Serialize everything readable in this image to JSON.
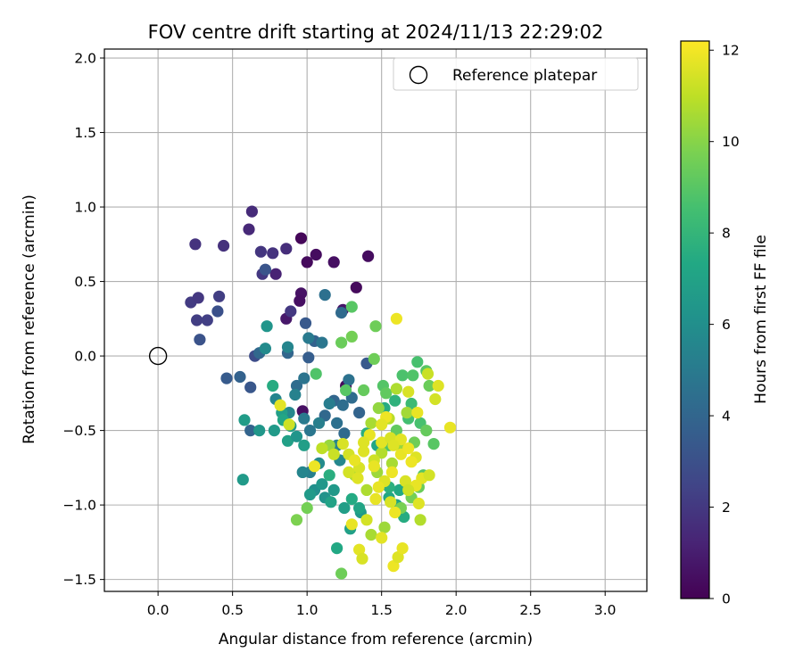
{
  "chart_data": {
    "type": "scatter",
    "title": "FOV centre drift starting at 2024/11/13 22:29:02",
    "xlabel": "Angular distance from reference (arcmin)",
    "ylabel": "Rotation from reference (arcmin)",
    "xlim": [
      -0.36,
      3.28
    ],
    "ylim": [
      -1.58,
      2.06
    ],
    "xticks": [
      0.0,
      0.5,
      1.0,
      1.5,
      2.0,
      2.5,
      3.0
    ],
    "xtick_labels": [
      "0.0",
      "0.5",
      "1.0",
      "1.5",
      "2.0",
      "2.5",
      "3.0"
    ],
    "yticks": [
      -1.5,
      -1.0,
      -0.5,
      0.0,
      0.5,
      1.0,
      1.5,
      2.0
    ],
    "ytick_labels": [
      "−1.5",
      "−1.0",
      "−0.5",
      "0.0",
      "0.5",
      "1.0",
      "1.5",
      "2.0"
    ],
    "grid": true,
    "legend": {
      "position": "upper-right",
      "entries": [
        "Reference platepar"
      ]
    },
    "reference_point": {
      "x": 0.0,
      "y": 0.0,
      "marker": "open-circle",
      "label": "Reference platepar"
    },
    "colorbar": {
      "label": "Hours from first FF file",
      "range": [
        0,
        12.2
      ],
      "ticks": [
        0,
        2,
        4,
        6,
        8,
        10,
        12
      ],
      "tick_labels": [
        "0",
        "2",
        "4",
        "6",
        "8",
        "10",
        "12"
      ],
      "colormap": "viridis"
    },
    "point_fields": [
      "x",
      "y",
      "hours"
    ],
    "points": [
      [
        0.96,
        0.79,
        0.2
      ],
      [
        1.06,
        0.68,
        0.4
      ],
      [
        1.0,
        0.63,
        0.3
      ],
      [
        1.18,
        0.63,
        0.5
      ],
      [
        1.41,
        0.67,
        0.4
      ],
      [
        1.33,
        0.46,
        0.3
      ],
      [
        0.96,
        0.42,
        0.6
      ],
      [
        0.95,
        0.37,
        0.5
      ],
      [
        0.86,
        0.25,
        0.8
      ],
      [
        1.24,
        0.31,
        0.7
      ],
      [
        1.26,
        -0.2,
        0.3
      ],
      [
        0.97,
        -0.37,
        0.5
      ],
      [
        0.63,
        0.97,
        1.5
      ],
      [
        0.61,
        0.85,
        1.4
      ],
      [
        0.25,
        0.75,
        1.8
      ],
      [
        0.44,
        0.74,
        1.7
      ],
      [
        0.69,
        0.7,
        1.9
      ],
      [
        0.86,
        0.72,
        1.6
      ],
      [
        0.77,
        0.69,
        1.8
      ],
      [
        0.7,
        0.55,
        2.0
      ],
      [
        0.79,
        0.55,
        1.2
      ],
      [
        0.22,
        0.36,
        2.1
      ],
      [
        0.27,
        0.39,
        2.0
      ],
      [
        0.41,
        0.4,
        2.2
      ],
      [
        0.89,
        0.3,
        2.0
      ],
      [
        0.26,
        0.24,
        2.2
      ],
      [
        0.33,
        0.24,
        2.3
      ],
      [
        0.4,
        0.3,
        3.0
      ],
      [
        0.28,
        0.11,
        3.1
      ],
      [
        0.65,
        0.0,
        2.8
      ],
      [
        0.72,
        0.58,
        3.2
      ],
      [
        0.99,
        0.22,
        3.4
      ],
      [
        1.12,
        0.41,
        4.5
      ],
      [
        1.23,
        0.29,
        4.2
      ],
      [
        1.05,
        0.1,
        3.8
      ],
      [
        0.87,
        0.02,
        4.0
      ],
      [
        1.01,
        -0.01,
        3.6
      ],
      [
        1.4,
        -0.05,
        3.4
      ],
      [
        0.46,
        -0.15,
        3.5
      ],
      [
        0.55,
        -0.14,
        3.8
      ],
      [
        0.62,
        -0.21,
        3.3
      ],
      [
        0.62,
        -0.5,
        3.9
      ],
      [
        0.68,
        0.02,
        4.1
      ],
      [
        0.93,
        -0.2,
        4.3
      ],
      [
        0.98,
        -0.15,
        4.7
      ],
      [
        1.01,
        0.12,
        5.0
      ],
      [
        1.1,
        0.09,
        4.8
      ],
      [
        1.18,
        -0.3,
        4.0
      ],
      [
        1.24,
        -0.33,
        4.4
      ],
      [
        1.28,
        -0.16,
        4.6
      ],
      [
        1.3,
        -0.28,
        4.3
      ],
      [
        1.35,
        -0.38,
        3.9
      ],
      [
        1.12,
        -0.4,
        4.1
      ],
      [
        1.2,
        -0.45,
        4.5
      ],
      [
        1.25,
        -0.52,
        4.2
      ],
      [
        1.02,
        -0.5,
        4.8
      ],
      [
        1.08,
        -0.45,
        5.2
      ],
      [
        0.98,
        -0.42,
        5.0
      ],
      [
        0.73,
        0.2,
        6.3
      ],
      [
        0.72,
        0.05,
        5.8
      ],
      [
        0.87,
        0.06,
        5.5
      ],
      [
        0.79,
        -0.29,
        5.5
      ],
      [
        0.88,
        -0.38,
        5.6
      ],
      [
        0.92,
        -0.26,
        5.3
      ],
      [
        1.15,
        -0.32,
        5.1
      ],
      [
        1.2,
        -0.6,
        5.4
      ],
      [
        1.22,
        -0.7,
        5.6
      ],
      [
        1.08,
        -0.72,
        5.8
      ],
      [
        1.02,
        -0.78,
        5.2
      ],
      [
        0.97,
        -0.78,
        5.5
      ],
      [
        1.05,
        -0.9,
        6.0
      ],
      [
        1.12,
        -0.95,
        6.2
      ],
      [
        1.18,
        -0.9,
        6.5
      ],
      [
        0.58,
        -0.43,
        6.7
      ],
      [
        0.57,
        -0.83,
        6.6
      ],
      [
        0.68,
        -0.5,
        6.4
      ],
      [
        0.78,
        -0.5,
        6.6
      ],
      [
        0.83,
        -0.38,
        6.8
      ],
      [
        0.89,
        -0.47,
        6.5
      ],
      [
        0.87,
        -0.57,
        6.9
      ],
      [
        0.93,
        -0.54,
        6.3
      ],
      [
        0.98,
        -0.6,
        6.8
      ],
      [
        1.02,
        -0.93,
        6.6
      ],
      [
        1.1,
        -0.86,
        6.4
      ],
      [
        1.16,
        -0.98,
        7.0
      ],
      [
        1.25,
        -1.02,
        6.8
      ],
      [
        1.29,
        -1.16,
        6.9
      ],
      [
        1.36,
        -1.05,
        6.5
      ],
      [
        0.77,
        -0.2,
        7.5
      ],
      [
        0.84,
        -0.43,
        7.2
      ],
      [
        1.15,
        -0.8,
        7.6
      ],
      [
        1.2,
        -1.29,
        7.3
      ],
      [
        1.35,
        -1.02,
        7.1
      ],
      [
        1.3,
        -0.96,
        7.4
      ],
      [
        1.55,
        -0.95,
        7.2
      ],
      [
        1.6,
        -1.0,
        7.0
      ],
      [
        1.65,
        -1.08,
        7.5
      ],
      [
        1.62,
        -0.9,
        7.3
      ],
      [
        1.55,
        -0.88,
        7.7
      ],
      [
        1.47,
        -0.6,
        7.2
      ],
      [
        1.4,
        -0.52,
        7.6
      ],
      [
        1.52,
        -0.35,
        7.5
      ],
      [
        1.59,
        -0.3,
        7.8
      ],
      [
        1.06,
        -0.12,
        8.8
      ],
      [
        1.3,
        0.33,
        9.0
      ],
      [
        1.46,
        0.2,
        9.5
      ],
      [
        1.3,
        0.13,
        9.6
      ],
      [
        1.23,
        0.09,
        9.4
      ],
      [
        1.26,
        -0.23,
        9.0
      ],
      [
        1.38,
        -0.23,
        9.3
      ],
      [
        1.45,
        -0.02,
        9.5
      ],
      [
        1.51,
        -0.2,
        8.9
      ],
      [
        1.53,
        -0.25,
        9.2
      ],
      [
        1.64,
        -0.13,
        8.7
      ],
      [
        1.74,
        -0.04,
        8.6
      ],
      [
        1.71,
        -0.13,
        8.8
      ],
      [
        1.8,
        -0.1,
        9.0
      ],
      [
        1.82,
        -0.2,
        9.4
      ],
      [
        1.7,
        -0.32,
        8.3
      ],
      [
        1.68,
        -0.42,
        8.5
      ],
      [
        1.76,
        -0.45,
        8.6
      ],
      [
        1.6,
        -0.5,
        9.2
      ],
      [
        1.55,
        -0.6,
        8.8
      ],
      [
        1.72,
        -0.58,
        9.5
      ],
      [
        1.8,
        -0.5,
        9.3
      ],
      [
        1.85,
        -0.59,
        9.0
      ],
      [
        1.78,
        -0.8,
        8.9
      ],
      [
        1.75,
        -0.88,
        9.4
      ],
      [
        1.7,
        -0.95,
        9.6
      ],
      [
        1.63,
        -1.02,
        9.7
      ],
      [
        1.0,
        -1.02,
        9.6
      ],
      [
        0.93,
        -1.1,
        9.8
      ],
      [
        1.23,
        -1.46,
        9.5
      ],
      [
        1.15,
        -0.6,
        10.3
      ],
      [
        1.32,
        -0.8,
        10.5
      ],
      [
        1.4,
        -0.9,
        10.7
      ],
      [
        1.47,
        -0.78,
        10.4
      ],
      [
        1.5,
        -0.65,
        10.8
      ],
      [
        1.43,
        -0.45,
        10.6
      ],
      [
        1.48,
        -0.35,
        10.2
      ],
      [
        1.55,
        -0.42,
        10.9
      ],
      [
        1.6,
        -0.22,
        10.7
      ],
      [
        1.67,
        -0.38,
        10.5
      ],
      [
        1.62,
        -0.6,
        10.3
      ],
      [
        1.57,
        -0.72,
        10.6
      ],
      [
        1.52,
        -1.15,
        10.4
      ],
      [
        1.43,
        -1.2,
        10.6
      ],
      [
        1.76,
        -1.1,
        10.8
      ],
      [
        1.1,
        -0.62,
        11.0
      ],
      [
        1.18,
        -0.66,
        11.2
      ],
      [
        1.28,
        -0.66,
        11.4
      ],
      [
        1.35,
        -0.75,
        11.5
      ],
      [
        1.38,
        -0.64,
        11.6
      ],
      [
        1.45,
        -0.7,
        11.3
      ],
      [
        1.5,
        -0.58,
        11.7
      ],
      [
        1.56,
        -0.55,
        11.5
      ],
      [
        1.63,
        -0.66,
        11.8
      ],
      [
        1.68,
        -0.62,
        11.9
      ],
      [
        1.73,
        -0.68,
        11.6
      ],
      [
        1.77,
        -0.82,
        11.7
      ],
      [
        1.82,
        -0.8,
        11.4
      ],
      [
        1.73,
        -0.87,
        11.8
      ],
      [
        1.66,
        -0.84,
        11.5
      ],
      [
        1.57,
        -0.78,
        11.9
      ],
      [
        1.52,
        -0.84,
        11.6
      ],
      [
        1.46,
        -0.96,
        11.8
      ],
      [
        1.4,
        -1.1,
        11.4
      ],
      [
        1.35,
        -1.3,
        11.7
      ],
      [
        1.37,
        -1.36,
        11.5
      ],
      [
        1.58,
        -1.41,
        11.9
      ],
      [
        1.61,
        -1.35,
        11.6
      ],
      [
        1.64,
        -1.29,
        11.8
      ],
      [
        1.5,
        -1.22,
        11.7
      ],
      [
        1.59,
        -1.05,
        11.9
      ],
      [
        1.75,
        -0.99,
        11.6
      ],
      [
        1.68,
        -0.9,
        11.3
      ],
      [
        1.6,
        0.25,
        11.9
      ],
      [
        1.96,
        -0.48,
        11.8
      ],
      [
        1.88,
        -0.2,
        11.6
      ],
      [
        1.86,
        -0.29,
        11.4
      ],
      [
        1.74,
        -0.38,
        11.8
      ],
      [
        1.81,
        -0.12,
        11.2
      ],
      [
        1.68,
        -0.24,
        11.5
      ],
      [
        1.53,
        -0.41,
        11.9
      ],
      [
        1.5,
        -0.46,
        11.7
      ],
      [
        1.42,
        -0.53,
        11.8
      ],
      [
        1.38,
        -0.58,
        11.6
      ],
      [
        1.32,
        -0.7,
        11.8
      ],
      [
        1.05,
        -0.74,
        11.9
      ],
      [
        0.82,
        -0.33,
        11.7
      ],
      [
        0.88,
        -0.46,
        11.3
      ],
      [
        1.24,
        -0.59,
        11.5
      ],
      [
        1.45,
        -0.74,
        11.8
      ],
      [
        1.7,
        -0.71,
        11.9
      ],
      [
        1.63,
        -0.56,
        11.7
      ],
      [
        1.56,
        -0.98,
        11.5
      ],
      [
        1.48,
        -0.88,
        11.8
      ],
      [
        1.28,
        -0.78,
        11.4
      ],
      [
        1.34,
        -0.82,
        11.6
      ],
      [
        1.3,
        -1.13,
        11.8
      ],
      [
        1.58,
        -0.6,
        11.6
      ]
    ]
  }
}
